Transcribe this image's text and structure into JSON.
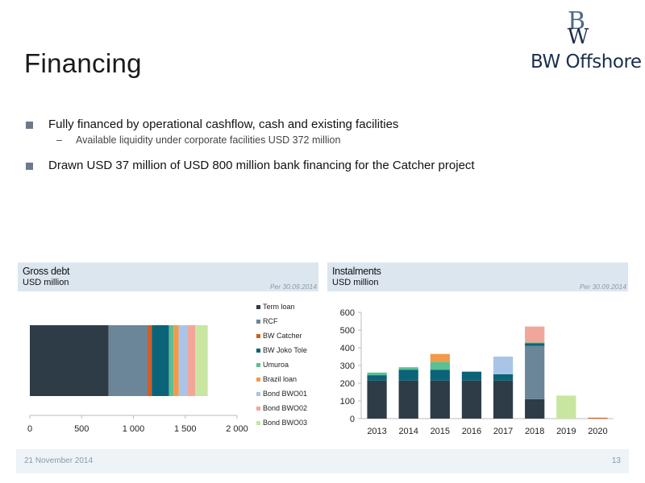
{
  "slide": {
    "title": "Financing",
    "logo_text": "BW Offshore",
    "bullets": [
      {
        "text": "Fully financed by operational cashflow, cash and existing facilities",
        "sub": "Available liquidity under corporate facilities USD 372 million"
      },
      {
        "text": "Drawn USD 37 million of USD 800 million bank financing for the Catcher project",
        "sub": ""
      }
    ],
    "footer_date": "21 November 2014",
    "page_number": "13"
  },
  "panels": {
    "gross": {
      "title": "Gross debt",
      "unit": "USD million",
      "date": "Per 30.09.2014"
    },
    "inst": {
      "title": "Instalments",
      "unit": "USD million",
      "date": "Per 30.09.2014"
    }
  },
  "chart_data": [
    {
      "type": "bar",
      "orientation": "horizontal-stacked",
      "xlim": [
        0,
        2000
      ],
      "xticks": [
        0,
        500,
        1000,
        1500,
        2000
      ],
      "xtick_labels": [
        "0",
        "500",
        "1 000",
        "1 500",
        "2 000"
      ],
      "legend_position": "right",
      "series": [
        {
          "name": "Term loan",
          "value": 760,
          "color": "#2e3c48"
        },
        {
          "name": "RCF",
          "value": 380,
          "color": "#6b8599"
        },
        {
          "name": "BW Catcher",
          "value": 37,
          "color": "#d95a1e"
        },
        {
          "name": "BW Joko Tole",
          "value": 165,
          "color": "#0b6378"
        },
        {
          "name": "Umuroa",
          "value": 45,
          "color": "#5bbf94"
        },
        {
          "name": "Brazil loan",
          "value": 50,
          "color": "#f29a4a"
        },
        {
          "name": "Bond BWO01",
          "value": 85,
          "color": "#a9c4e6"
        },
        {
          "name": "Bond BWO02",
          "value": 75,
          "color": "#f2a69a"
        },
        {
          "name": "Bond BWO03",
          "value": 120,
          "color": "#c9e6a0"
        }
      ]
    },
    {
      "type": "bar",
      "orientation": "vertical-stacked",
      "categories": [
        "2013",
        "2014",
        "2015",
        "2016",
        "2017",
        "2018",
        "2019",
        "2020"
      ],
      "ylim": [
        0,
        600
      ],
      "yticks": [
        0,
        100,
        200,
        300,
        400,
        500,
        600
      ],
      "series": [
        {
          "name": "Term loan",
          "color": "#2e3c48",
          "values": [
            215,
            215,
            215,
            215,
            215,
            110,
            0,
            0
          ]
        },
        {
          "name": "RCF",
          "color": "#6b8599",
          "values": [
            0,
            0,
            0,
            0,
            0,
            300,
            0,
            0
          ]
        },
        {
          "name": "BW Catcher",
          "color": "#d95a1e",
          "values": [
            0,
            0,
            0,
            0,
            0,
            0,
            0,
            5
          ]
        },
        {
          "name": "BW Joko Tole",
          "color": "#0b6378",
          "values": [
            30,
            60,
            60,
            50,
            35,
            15,
            0,
            0
          ]
        },
        {
          "name": "Umuroa",
          "color": "#5bbf94",
          "values": [
            15,
            15,
            45,
            0,
            0,
            5,
            0,
            0
          ]
        },
        {
          "name": "Brazil loan",
          "color": "#f29a4a",
          "values": [
            0,
            0,
            45,
            0,
            0,
            0,
            0,
            0
          ]
        },
        {
          "name": "Bond BWO01",
          "color": "#a9c4e6",
          "values": [
            0,
            0,
            0,
            0,
            100,
            0,
            0,
            0
          ]
        },
        {
          "name": "Bond BWO02",
          "color": "#f2a69a",
          "values": [
            0,
            0,
            0,
            0,
            0,
            90,
            0,
            0
          ]
        },
        {
          "name": "Bond BWO03",
          "color": "#c9e6a0",
          "values": [
            0,
            0,
            0,
            0,
            0,
            0,
            130,
            0
          ]
        }
      ]
    }
  ]
}
